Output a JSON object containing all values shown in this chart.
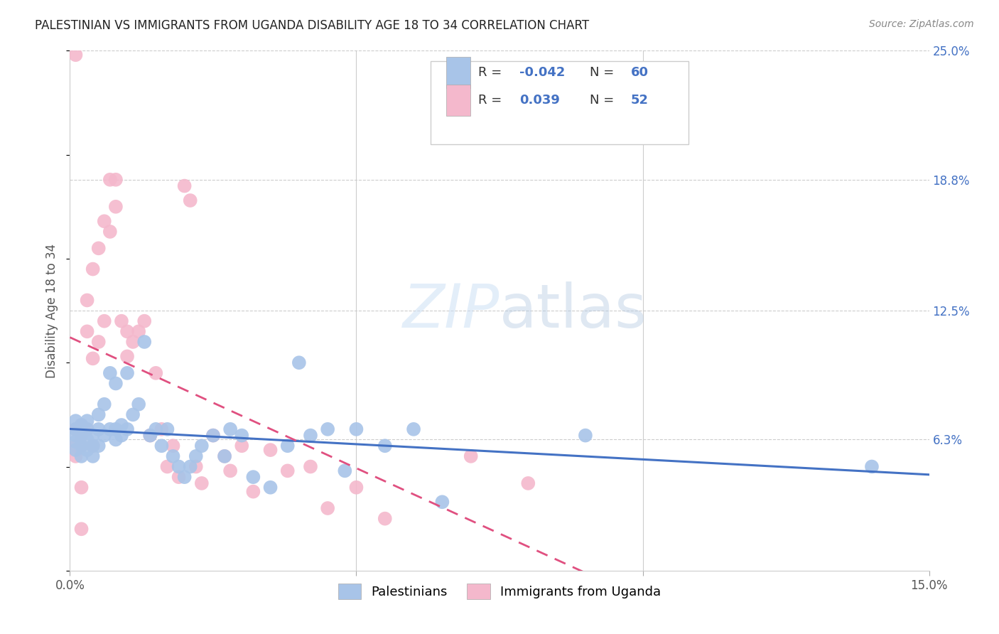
{
  "title": "PALESTINIAN VS IMMIGRANTS FROM UGANDA DISABILITY AGE 18 TO 34 CORRELATION CHART",
  "source": "Source: ZipAtlas.com",
  "ylabel": "Disability Age 18 to 34",
  "xlim": [
    0.0,
    0.15
  ],
  "ylim": [
    0.0,
    0.25
  ],
  "palestinians_color": "#a8c4e8",
  "uganda_color": "#f4b8cc",
  "trendline_pal_color": "#4472c4",
  "trendline_uga_color": "#e05080",
  "R_pal": -0.042,
  "N_pal": 60,
  "R_uga": 0.039,
  "N_uga": 52,
  "palestinians_x": [
    0.001,
    0.001,
    0.001,
    0.001,
    0.001,
    0.002,
    0.002,
    0.002,
    0.002,
    0.003,
    0.003,
    0.003,
    0.003,
    0.004,
    0.004,
    0.004,
    0.005,
    0.005,
    0.005,
    0.006,
    0.006,
    0.007,
    0.007,
    0.008,
    0.008,
    0.008,
    0.009,
    0.009,
    0.01,
    0.01,
    0.011,
    0.012,
    0.013,
    0.014,
    0.015,
    0.016,
    0.017,
    0.018,
    0.019,
    0.02,
    0.021,
    0.022,
    0.023,
    0.025,
    0.027,
    0.028,
    0.03,
    0.032,
    0.035,
    0.038,
    0.04,
    0.042,
    0.045,
    0.048,
    0.05,
    0.055,
    0.06,
    0.065,
    0.09,
    0.14
  ],
  "palestinians_y": [
    0.068,
    0.065,
    0.062,
    0.058,
    0.072,
    0.07,
    0.065,
    0.06,
    0.055,
    0.068,
    0.063,
    0.072,
    0.058,
    0.065,
    0.06,
    0.055,
    0.075,
    0.068,
    0.06,
    0.08,
    0.065,
    0.095,
    0.068,
    0.09,
    0.068,
    0.063,
    0.065,
    0.07,
    0.095,
    0.068,
    0.075,
    0.08,
    0.11,
    0.065,
    0.068,
    0.06,
    0.068,
    0.055,
    0.05,
    0.045,
    0.05,
    0.055,
    0.06,
    0.065,
    0.055,
    0.068,
    0.065,
    0.045,
    0.04,
    0.06,
    0.1,
    0.065,
    0.068,
    0.048,
    0.068,
    0.06,
    0.068,
    0.033,
    0.065,
    0.05
  ],
  "uganda_x": [
    0.001,
    0.001,
    0.001,
    0.001,
    0.002,
    0.002,
    0.002,
    0.002,
    0.003,
    0.003,
    0.003,
    0.004,
    0.004,
    0.004,
    0.005,
    0.005,
    0.006,
    0.006,
    0.007,
    0.007,
    0.008,
    0.008,
    0.009,
    0.01,
    0.01,
    0.011,
    0.012,
    0.013,
    0.014,
    0.015,
    0.016,
    0.017,
    0.018,
    0.019,
    0.02,
    0.021,
    0.022,
    0.023,
    0.025,
    0.027,
    0.028,
    0.03,
    0.032,
    0.035,
    0.038,
    0.042,
    0.045,
    0.05,
    0.055,
    0.07,
    0.002,
    0.08
  ],
  "uganda_y": [
    0.068,
    0.06,
    0.055,
    0.248,
    0.07,
    0.065,
    0.06,
    0.04,
    0.068,
    0.13,
    0.115,
    0.145,
    0.06,
    0.102,
    0.155,
    0.11,
    0.168,
    0.12,
    0.188,
    0.163,
    0.188,
    0.175,
    0.12,
    0.115,
    0.103,
    0.11,
    0.115,
    0.12,
    0.065,
    0.095,
    0.068,
    0.05,
    0.06,
    0.045,
    0.185,
    0.178,
    0.05,
    0.042,
    0.065,
    0.055,
    0.048,
    0.06,
    0.038,
    0.058,
    0.048,
    0.05,
    0.03,
    0.04,
    0.025,
    0.055,
    0.02,
    0.042
  ]
}
